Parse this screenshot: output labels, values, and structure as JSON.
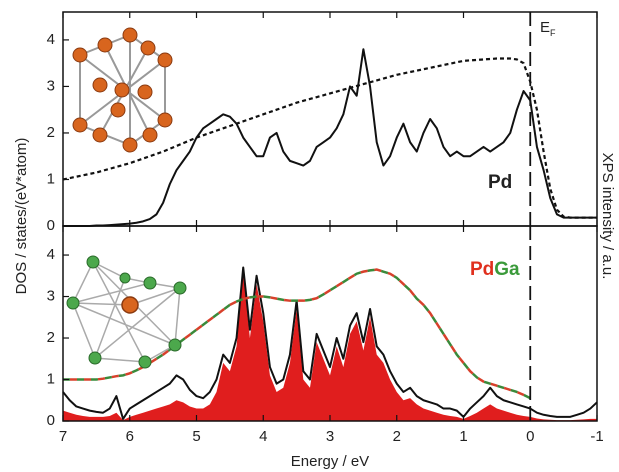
{
  "axis_labels": {
    "x": "Energy / eV",
    "y": "DOS / states/(eV*atom)",
    "y2": "XPS intensity / a.u."
  },
  "fermi": {
    "value": 0,
    "label": "E",
    "sub": "F"
  },
  "chart_data": [
    {
      "type": "line",
      "annotation": "Pd",
      "annotation_color": "#e0301e",
      "xlim": [
        7,
        -1
      ],
      "ylim": [
        0,
        4.6
      ],
      "yticks": [
        0,
        1,
        2,
        3,
        4
      ],
      "x": [
        7,
        6.9,
        6.8,
        6.7,
        6.6,
        6.5,
        6.4,
        6.3,
        6.2,
        6.1,
        6,
        5.9,
        5.8,
        5.7,
        5.6,
        5.5,
        5.4,
        5.3,
        5.2,
        5.1,
        5,
        4.9,
        4.8,
        4.7,
        4.6,
        4.5,
        4.4,
        4.3,
        4.2,
        4.1,
        4,
        3.9,
        3.8,
        3.7,
        3.6,
        3.5,
        3.4,
        3.3,
        3.2,
        3.1,
        3,
        2.9,
        2.8,
        2.7,
        2.6,
        2.5,
        2.4,
        2.3,
        2.2,
        2.1,
        2,
        1.9,
        1.8,
        1.7,
        1.6,
        1.5,
        1.4,
        1.3,
        1.2,
        1.1,
        1,
        0.9,
        0.8,
        0.7,
        0.6,
        0.5,
        0.4,
        0.3,
        0.2,
        0.1,
        0,
        -0.1,
        -0.2,
        -0.3,
        -0.4,
        -0.5,
        -0.6,
        -0.7,
        -0.8,
        -0.9,
        -1
      ],
      "series": [
        {
          "style": "dashed",
          "color": "#111111",
          "values": [
            1.0,
            1.03,
            1.06,
            1.09,
            1.12,
            1.15,
            1.19,
            1.23,
            1.27,
            1.31,
            1.35,
            1.4,
            1.45,
            1.5,
            1.55,
            1.6,
            1.66,
            1.72,
            1.78,
            1.84,
            1.9,
            1.95,
            2.0,
            2.05,
            2.1,
            2.15,
            2.2,
            2.25,
            2.3,
            2.35,
            2.4,
            2.45,
            2.5,
            2.55,
            2.6,
            2.65,
            2.69,
            2.73,
            2.77,
            2.81,
            2.85,
            2.89,
            2.93,
            2.97,
            3.01,
            3.05,
            3.09,
            3.13,
            3.17,
            3.21,
            3.25,
            3.28,
            3.31,
            3.34,
            3.37,
            3.4,
            3.43,
            3.46,
            3.49,
            3.52,
            3.55,
            3.56,
            3.57,
            3.58,
            3.59,
            3.6,
            3.6,
            3.6,
            3.58,
            3.5,
            3.1,
            2.5,
            1.6,
            0.8,
            0.35,
            0.2,
            0.18,
            0.18,
            0.18,
            0.18,
            0.18
          ]
        },
        {
          "style": "solid",
          "color": "#111111",
          "values": [
            0,
            0,
            0,
            0,
            0,
            0.01,
            0.01,
            0.02,
            0.03,
            0.04,
            0.05,
            0.07,
            0.1,
            0.15,
            0.25,
            0.5,
            0.9,
            1.2,
            1.4,
            1.6,
            1.9,
            2.1,
            2.2,
            2.3,
            2.4,
            2.35,
            2.2,
            1.9,
            1.7,
            1.5,
            1.5,
            1.9,
            2.0,
            1.6,
            1.4,
            1.35,
            1.3,
            1.4,
            1.7,
            1.8,
            1.9,
            2.1,
            2.4,
            3.0,
            2.8,
            3.8,
            3.0,
            1.8,
            1.3,
            1.5,
            1.9,
            2.2,
            1.8,
            1.6,
            2.0,
            2.3,
            2.1,
            1.7,
            1.5,
            1.6,
            1.5,
            1.5,
            1.6,
            1.7,
            1.6,
            1.7,
            1.8,
            2.0,
            2.5,
            2.9,
            2.7,
            1.7,
            1.2,
            0.6,
            0.25,
            0.18,
            0.18,
            0.18,
            0.18,
            0.18,
            0.18
          ]
        }
      ]
    },
    {
      "type": "line",
      "annotation_parts": [
        "Pd",
        "Ga"
      ],
      "annotation_colors": [
        "#e0301e",
        "#3a9a3a"
      ],
      "xlim": [
        7,
        -1
      ],
      "ylim": [
        0,
        4.7
      ],
      "yticks": [
        0,
        1,
        2,
        3,
        4
      ],
      "xticks": [
        7,
        6,
        5,
        4,
        3,
        2,
        1,
        0,
        -1
      ],
      "x": [
        7,
        6.9,
        6.8,
        6.7,
        6.6,
        6.5,
        6.4,
        6.3,
        6.2,
        6.1,
        6,
        5.9,
        5.8,
        5.7,
        5.6,
        5.5,
        5.4,
        5.3,
        5.2,
        5.1,
        5,
        4.9,
        4.8,
        4.7,
        4.6,
        4.5,
        4.4,
        4.3,
        4.2,
        4.1,
        4,
        3.9,
        3.8,
        3.7,
        3.6,
        3.5,
        3.4,
        3.3,
        3.2,
        3.1,
        3,
        2.9,
        2.8,
        2.7,
        2.6,
        2.5,
        2.4,
        2.3,
        2.2,
        2.1,
        2,
        1.9,
        1.8,
        1.7,
        1.6,
        1.5,
        1.4,
        1.3,
        1.2,
        1.1,
        1,
        0.9,
        0.8,
        0.7,
        0.6,
        0.5,
        0.4,
        0.3,
        0.2,
        0.1,
        0,
        -0.1,
        -0.2,
        -0.3,
        -0.4,
        -0.5,
        -0.6,
        -0.7,
        -0.8,
        -0.9,
        -1
      ],
      "series": [
        {
          "style": "area",
          "color": "#e01e1e",
          "values": [
            0.25,
            0.2,
            0.15,
            0.12,
            0.1,
            0.1,
            0.1,
            0.12,
            0.2,
            0.02,
            0.1,
            0.15,
            0.2,
            0.25,
            0.3,
            0.35,
            0.4,
            0.5,
            0.45,
            0.35,
            0.3,
            0.3,
            0.4,
            0.7,
            1.4,
            1.2,
            1.8,
            3.6,
            2.0,
            3.3,
            2.4,
            1.1,
            0.7,
            0.8,
            1.4,
            2.7,
            1.0,
            0.8,
            1.9,
            1.5,
            1.1,
            1.8,
            1.3,
            2.1,
            2.4,
            1.7,
            2.5,
            1.6,
            1.4,
            1.0,
            0.7,
            0.5,
            0.55,
            0.4,
            0.3,
            0.25,
            0.2,
            0.15,
            0.12,
            0.1,
            0.05,
            0.12,
            0.2,
            0.3,
            0.4,
            0.3,
            0.25,
            0.2,
            0.15,
            0.12,
            0.1,
            0.06,
            0.04,
            0.03,
            0.02,
            0.02,
            0.02,
            0.03,
            0.04,
            0.05,
            0.05
          ]
        },
        {
          "style": "solid",
          "color": "#111111",
          "values": [
            0.7,
            0.5,
            0.35,
            0.3,
            0.25,
            0.22,
            0.2,
            0.3,
            0.6,
            0.05,
            0.3,
            0.4,
            0.5,
            0.6,
            0.7,
            0.8,
            0.9,
            1.1,
            1.0,
            0.75,
            0.6,
            0.55,
            0.7,
            1.0,
            1.6,
            1.4,
            2.0,
            3.7,
            2.2,
            3.5,
            2.6,
            1.3,
            0.9,
            1.0,
            1.6,
            2.9,
            1.2,
            1.0,
            2.1,
            1.7,
            1.3,
            2.0,
            1.5,
            2.3,
            2.6,
            1.9,
            2.7,
            1.8,
            1.6,
            1.2,
            0.9,
            0.7,
            0.8,
            0.6,
            0.5,
            0.45,
            0.4,
            0.3,
            0.3,
            0.25,
            0.1,
            0.3,
            0.45,
            0.6,
            0.8,
            0.6,
            0.5,
            0.45,
            0.4,
            0.35,
            0.3,
            0.2,
            0.15,
            0.12,
            0.1,
            0.1,
            0.1,
            0.15,
            0.2,
            0.3,
            0.45
          ]
        },
        {
          "style": "dashed",
          "color": "#3a8a3a",
          "dash_color": "#d8402b",
          "values": [
            1.0,
            1.0,
            1.0,
            1.0,
            1.0,
            1.0,
            1.02,
            1.05,
            1.08,
            1.1,
            1.15,
            1.22,
            1.3,
            1.4,
            1.5,
            1.6,
            1.72,
            1.84,
            1.96,
            2.08,
            2.2,
            2.32,
            2.44,
            2.56,
            2.68,
            2.8,
            2.88,
            2.94,
            2.98,
            3.0,
            3.0,
            2.98,
            2.95,
            2.92,
            2.9,
            2.9,
            2.9,
            2.92,
            2.96,
            3.05,
            3.15,
            3.25,
            3.35,
            3.45,
            3.55,
            3.6,
            3.63,
            3.65,
            3.6,
            3.55,
            3.45,
            3.3,
            3.15,
            2.95,
            2.8,
            2.6,
            2.35,
            2.1,
            1.85,
            1.6,
            1.4,
            1.2,
            1.05,
            0.95,
            0.9,
            0.85,
            0.8,
            0.75,
            0.7,
            0.63,
            0.55,
            null,
            null,
            null,
            null,
            null,
            null,
            null,
            null,
            null,
            null
          ]
        }
      ]
    }
  ]
}
